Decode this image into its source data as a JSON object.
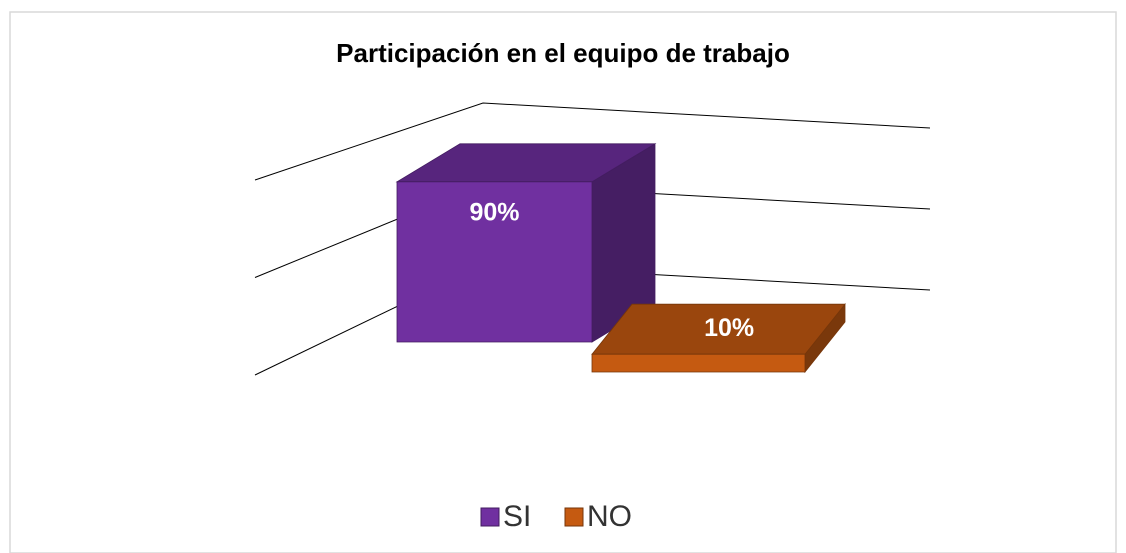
{
  "chart_data": {
    "type": "bar3d",
    "title": "Participación en el equipo de trabajo",
    "categories": [
      null
    ],
    "series": [
      {
        "name": "SI",
        "color": "#7030a0",
        "values": [
          90
        ],
        "value_labels": [
          "90%"
        ]
      },
      {
        "name": "NO",
        "color": "#c55a11",
        "values": [
          10
        ],
        "value_labels": [
          "10%"
        ]
      }
    ],
    "ylim": [
      0,
      100
    ],
    "yticks": [
      0,
      50,
      100
    ],
    "grid": true,
    "legend": "bottom"
  }
}
